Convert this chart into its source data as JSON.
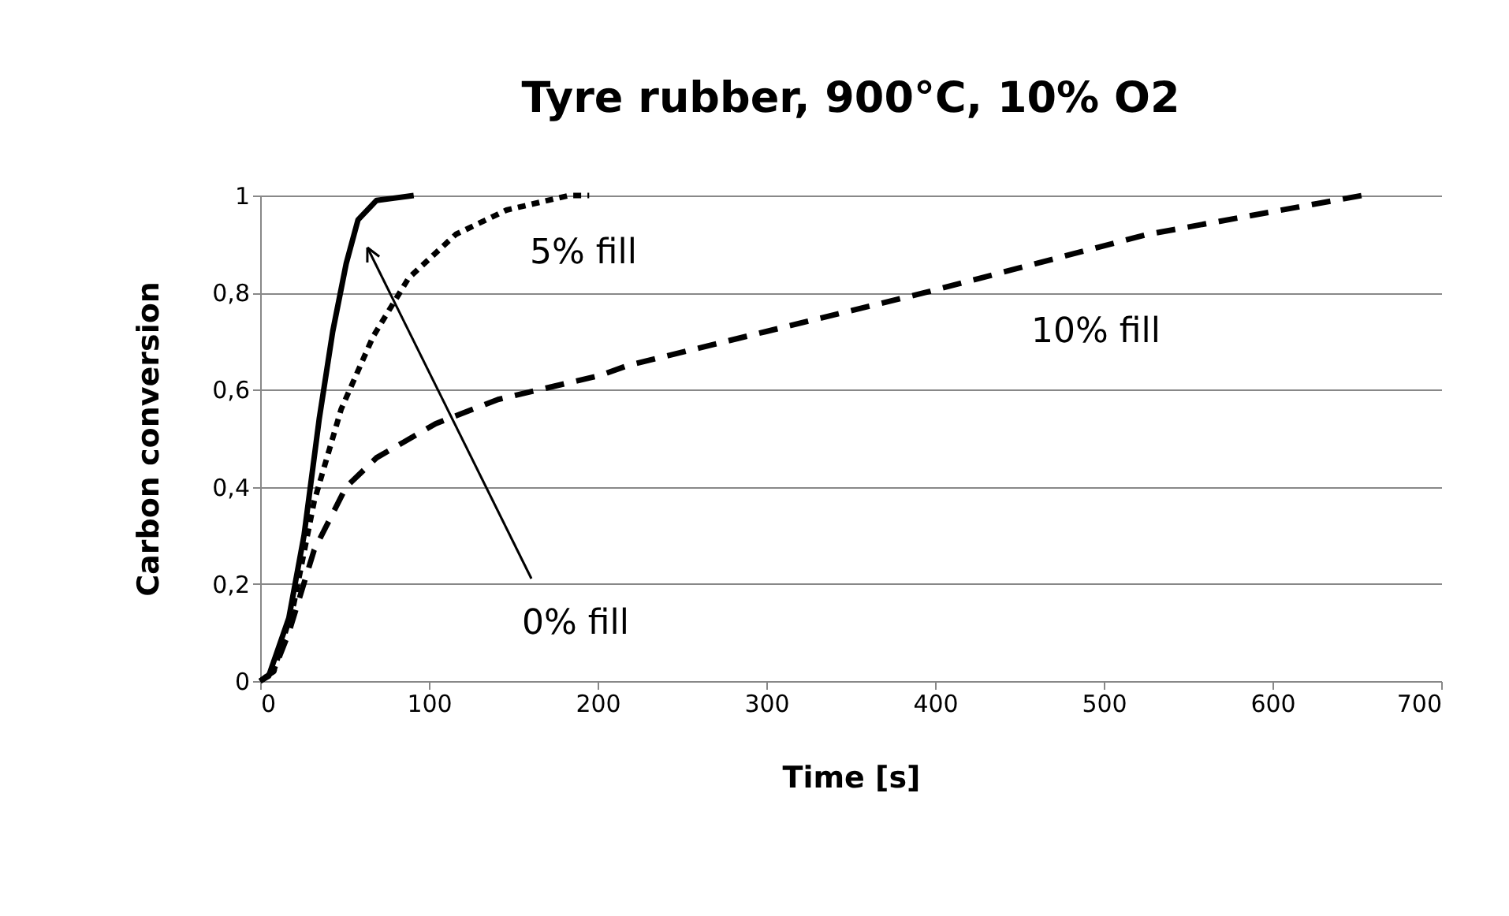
{
  "chart_data": {
    "type": "line",
    "title": "Tyre rubber, 900°C, 10% O2",
    "xlabel": "Time [s]",
    "ylabel": "Carbon conversion",
    "xlim": [
      0,
      700
    ],
    "xticks": [
      0,
      100,
      200,
      300,
      400,
      500,
      600,
      700
    ],
    "ylim": [
      0,
      1
    ],
    "yticks": [
      0,
      {
        "value": 0.2,
        "label": "0,2"
      },
      {
        "value": 0.4,
        "label": "0,4"
      },
      {
        "value": 0.6,
        "label": "0,6"
      },
      {
        "value": 0.8,
        "label": "0,8"
      },
      1
    ],
    "grid": "y",
    "marker": "none",
    "series": [
      {
        "color": "#000000",
        "line_style": "solid",
        "x": [
          0,
          5,
          17,
          26,
          35,
          43,
          51,
          58,
          69,
          91
        ],
        "values": [
          0,
          0.01,
          0.13,
          0.3,
          0.54,
          0.72,
          0.86,
          0.95,
          0.99,
          1
        ]
      },
      {
        "color": "#000000",
        "line_style": "dotted",
        "x": [
          0,
          8,
          20,
          32,
          48,
          67,
          88,
          116,
          146,
          183,
          195
        ],
        "values": [
          0,
          0.02,
          0.16,
          0.37,
          0.56,
          0.71,
          0.83,
          0.92,
          0.97,
          1,
          1
        ]
      },
      {
        "color": "#000000",
        "line_style": "dashed",
        "x": [
          0,
          8,
          17,
          32,
          51,
          69,
          104,
          141,
          202,
          218,
          300,
          394,
          526,
          653
        ],
        "values": [
          0,
          0.02,
          0.1,
          0.27,
          0.4,
          0.46,
          0.53,
          0.58,
          0.63,
          0.65,
          0.72,
          0.8,
          0.92,
          1
        ]
      }
    ],
    "annotations": [
      "5% fill",
      "10% fill",
      "0% fill"
    ]
  }
}
